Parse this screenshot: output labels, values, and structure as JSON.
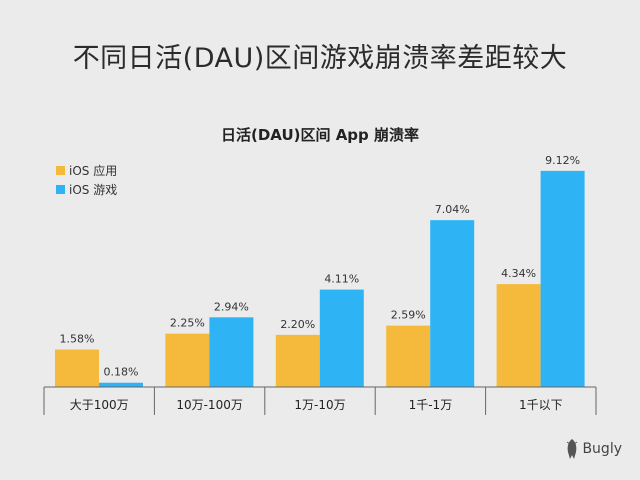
{
  "headline": "不同日活(DAU)区间游戏崩溃率差距较大",
  "brand": {
    "name": "Bugly",
    "logo_icon": "bug-logo-icon"
  },
  "chart_data": {
    "type": "bar",
    "title": "日活(DAU)区间 App 崩溃率",
    "xlabel": "",
    "ylabel": "",
    "ylim": [
      0,
      10
    ],
    "grid": false,
    "legend_position": "top-left",
    "categories": [
      "大于100万",
      "10万-100万",
      "1万-10万",
      "1千-1万",
      "1千以下"
    ],
    "series": [
      {
        "name": "iOS 应用",
        "color": "#f5b93c",
        "values": [
          1.58,
          2.25,
          2.2,
          2.59,
          4.34
        ],
        "labels": [
          "1.58%",
          "2.25%",
          "2.20%",
          "2.59%",
          "4.34%"
        ]
      },
      {
        "name": "iOS 游戏",
        "color": "#2eb3f5",
        "values": [
          0.18,
          2.94,
          4.11,
          7.04,
          9.12
        ],
        "labels": [
          "0.18%",
          "2.94%",
          "4.11%",
          "7.04%",
          "9.12%"
        ]
      }
    ]
  }
}
